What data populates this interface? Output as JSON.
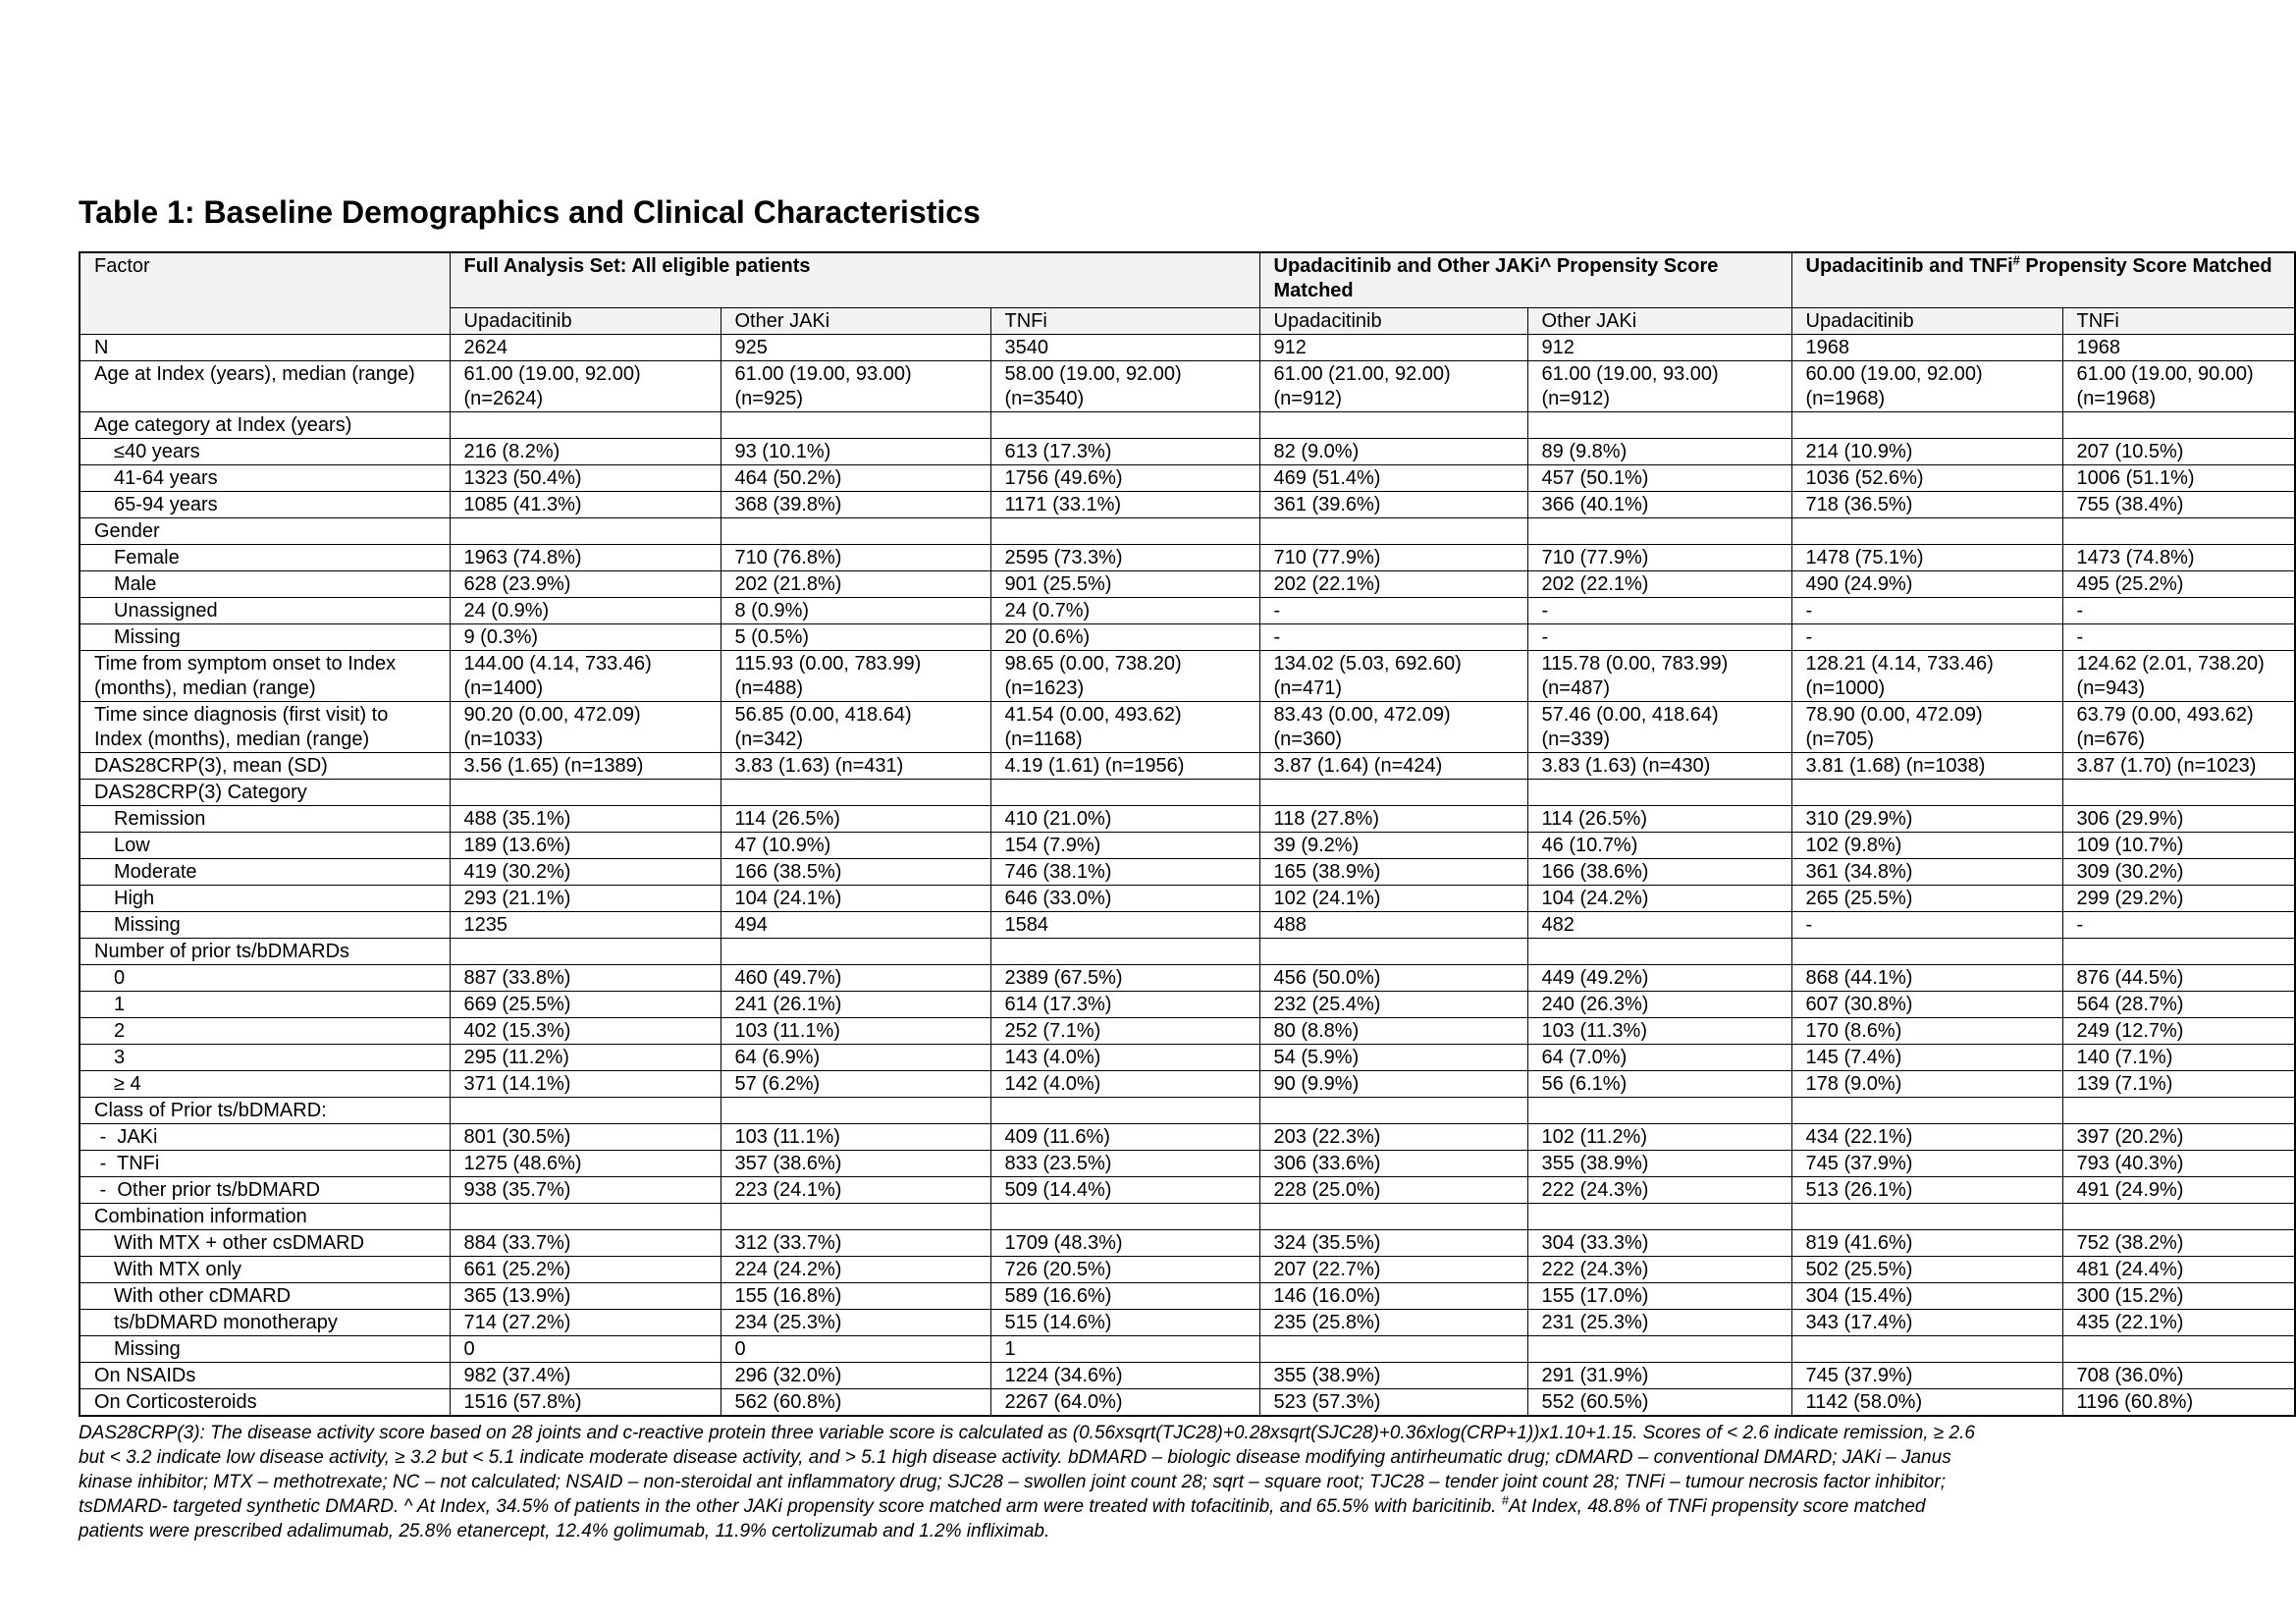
{
  "title": "Table 1: Baseline Demographics and Clinical Characteristics",
  "header": {
    "factor": "Factor",
    "group1": "Full Analysis Set: All eligible patients",
    "group2": "Upadacitinib and Other JAKi^ Propensity Score Matched",
    "group3_pre": "Upadacitinib and TNFi",
    "group3_sup": "#",
    "group3_post": " Propensity Score Matched",
    "columns": [
      "Upadacitinib",
      "Other JAKi",
      "TNFi",
      "Upadacitinib",
      "Other JAKi",
      "Upadacitinib",
      "TNFi"
    ]
  },
  "rows": [
    {
      "label": "N",
      "style": "top",
      "values": [
        "2624",
        "925",
        "3540",
        "912",
        "912",
        "1968",
        "1968"
      ]
    },
    {
      "label": "Age at Index (years), median (range)",
      "style": "top",
      "values": [
        "61.00 (19.00, 92.00) (n=2624)",
        "61.00 (19.00, 93.00) (n=925)",
        "58.00 (19.00, 92.00) (n=3540)",
        "61.00 (21.00, 92.00) (n=912)",
        "61.00 (19.00, 93.00) (n=912)",
        "60.00 (19.00, 92.00) (n=1968)",
        "61.00 (19.00, 90.00) (n=1968)"
      ]
    },
    {
      "label": "Age category at Index (years)",
      "style": "top",
      "values": [
        "",
        "",
        "",
        "",
        "",
        "",
        ""
      ]
    },
    {
      "label": "≤40 years",
      "style": "sub",
      "values": [
        "216 (8.2%)",
        "93 (10.1%)",
        "613 (17.3%)",
        "82 (9.0%)",
        "89 (9.8%)",
        "214 (10.9%)",
        "207 (10.5%)"
      ]
    },
    {
      "label": "41-64 years",
      "style": "sub",
      "values": [
        "1323 (50.4%)",
        "464 (50.2%)",
        "1756 (49.6%)",
        "469 (51.4%)",
        "457 (50.1%)",
        "1036 (52.6%)",
        "1006 (51.1%)"
      ]
    },
    {
      "label": "65-94 years",
      "style": "sub",
      "values": [
        "1085 (41.3%)",
        "368 (39.8%)",
        "1171 (33.1%)",
        "361 (39.6%)",
        "366 (40.1%)",
        "718 (36.5%)",
        "755 (38.4%)"
      ]
    },
    {
      "label": "Gender",
      "style": "top",
      "values": [
        "",
        "",
        "",
        "",
        "",
        "",
        ""
      ]
    },
    {
      "label": "Female",
      "style": "sub",
      "values": [
        "1963 (74.8%)",
        "710 (76.8%)",
        "2595 (73.3%)",
        "710 (77.9%)",
        "710 (77.9%)",
        "1478 (75.1%)",
        "1473 (74.8%)"
      ]
    },
    {
      "label": "Male",
      "style": "sub",
      "values": [
        "628 (23.9%)",
        "202 (21.8%)",
        "901 (25.5%)",
        "202 (22.1%)",
        "202 (22.1%)",
        "490 (24.9%)",
        "495 (25.2%)"
      ]
    },
    {
      "label": "Unassigned",
      "style": "sub",
      "values": [
        "24 (0.9%)",
        "8 (0.9%)",
        "24 (0.7%)",
        "-",
        "-",
        "-",
        "-"
      ]
    },
    {
      "label": "Missing",
      "style": "sub",
      "values": [
        "9 (0.3%)",
        "5 (0.5%)",
        "20 (0.6%)",
        "-",
        "-",
        "-",
        "-"
      ]
    },
    {
      "label": "Time from symptom onset to Index (months), median (range)",
      "style": "top",
      "values": [
        "144.00 (4.14, 733.46) (n=1400)",
        "115.93 (0.00, 783.99) (n=488)",
        "98.65 (0.00, 738.20) (n=1623)",
        "134.02 (5.03, 692.60) (n=471)",
        "115.78 (0.00, 783.99) (n=487)",
        "128.21 (4.14, 733.46) (n=1000)",
        "124.62 (2.01, 738.20) (n=943)"
      ]
    },
    {
      "label": "Time since diagnosis (first visit) to Index (months), median (range)",
      "style": "top",
      "values": [
        "90.20 (0.00, 472.09) (n=1033)",
        "56.85 (0.00, 418.64) (n=342)",
        "41.54 (0.00, 493.62) (n=1168)",
        "83.43 (0.00, 472.09) (n=360)",
        "57.46 (0.00, 418.64) (n=339)",
        "78.90 (0.00, 472.09) (n=705)",
        "63.79 (0.00, 493.62) (n=676)"
      ]
    },
    {
      "label": "DAS28CRP(3), mean (SD)",
      "style": "top",
      "values": [
        "3.56 (1.65) (n=1389)",
        "3.83 (1.63) (n=431)",
        "4.19 (1.61) (n=1956)",
        "3.87 (1.64) (n=424)",
        "3.83 (1.63) (n=430)",
        "3.81 (1.68) (n=1038)",
        "3.87 (1.70) (n=1023)"
      ]
    },
    {
      "label": "DAS28CRP(3) Category",
      "style": "top",
      "values": [
        "",
        "",
        "",
        "",
        "",
        "",
        ""
      ]
    },
    {
      "label": "Remission",
      "style": "sub",
      "values": [
        "488 (35.1%)",
        "114 (26.5%)",
        "410 (21.0%)",
        "118 (27.8%)",
        "114 (26.5%)",
        "310 (29.9%)",
        "306 (29.9%)"
      ]
    },
    {
      "label": "Low",
      "style": "sub",
      "values": [
        "189 (13.6%)",
        "47 (10.9%)",
        "154 (7.9%)",
        "39 (9.2%)",
        "46 (10.7%)",
        "102 (9.8%)",
        "109 (10.7%)"
      ]
    },
    {
      "label": "Moderate",
      "style": "sub",
      "values": [
        "419 (30.2%)",
        "166 (38.5%)",
        "746 (38.1%)",
        "165 (38.9%)",
        "166 (38.6%)",
        "361 (34.8%)",
        "309 (30.2%)"
      ]
    },
    {
      "label": "High",
      "style": "sub",
      "values": [
        "293 (21.1%)",
        "104 (24.1%)",
        "646 (33.0%)",
        "102 (24.1%)",
        "104 (24.2%)",
        "265 (25.5%)",
        "299 (29.2%)"
      ]
    },
    {
      "label": "Missing",
      "style": "sub",
      "values": [
        "1235",
        "494",
        "1584",
        "488",
        "482",
        "-",
        "-"
      ]
    },
    {
      "label": "Number of prior ts/bDMARDs",
      "style": "top",
      "values": [
        "",
        "",
        "",
        "",
        "",
        "",
        ""
      ]
    },
    {
      "label": "0",
      "style": "sub",
      "values": [
        "887 (33.8%)",
        "460 (49.7%)",
        "2389 (67.5%)",
        "456 (50.0%)",
        "449 (49.2%)",
        "868 (44.1%)",
        "876 (44.5%)"
      ]
    },
    {
      "label": "1",
      "style": "sub",
      "values": [
        "669 (25.5%)",
        "241 (26.1%)",
        "614 (17.3%)",
        "232 (25.4%)",
        "240 (26.3%)",
        "607 (30.8%)",
        "564 (28.7%)"
      ]
    },
    {
      "label": "2",
      "style": "sub",
      "values": [
        "402 (15.3%)",
        "103 (11.1%)",
        "252 (7.1%)",
        "80 (8.8%)",
        "103 (11.3%)",
        "170 (8.6%)",
        "249 (12.7%)"
      ]
    },
    {
      "label": "3",
      "style": "sub",
      "values": [
        "295 (11.2%)",
        "64 (6.9%)",
        "143 (4.0%)",
        "54 (5.9%)",
        "64 (7.0%)",
        "145 (7.4%)",
        "140 (7.1%)"
      ]
    },
    {
      "label": "≥ 4",
      "style": "sub",
      "values": [
        "371 (14.1%)",
        "57 (6.2%)",
        "142 (4.0%)",
        "90 (9.9%)",
        "56 (6.1%)",
        "178 (9.0%)",
        "139 (7.1%)"
      ]
    },
    {
      "label": "Class of Prior ts/bDMARD:",
      "style": "top",
      "values": [
        "",
        "",
        "",
        "",
        "",
        "",
        ""
      ]
    },
    {
      "label": " -  JAKi",
      "style": "dash",
      "values": [
        "801 (30.5%)",
        "103 (11.1%)",
        "409 (11.6%)",
        "203 (22.3%)",
        "102 (11.2%)",
        "434 (22.1%)",
        "397 (20.2%)"
      ]
    },
    {
      "label": " -  TNFi",
      "style": "dash",
      "values": [
        "1275 (48.6%)",
        "357 (38.6%)",
        "833 (23.5%)",
        "306 (33.6%)",
        "355 (38.9%)",
        "745 (37.9%)",
        "793 (40.3%)"
      ]
    },
    {
      "label": " -  Other prior ts/bDMARD",
      "style": "dash",
      "values": [
        "938 (35.7%)",
        "223 (24.1%)",
        "509 (14.4%)",
        "228 (25.0%)",
        "222 (24.3%)",
        "513 (26.1%)",
        "491 (24.9%)"
      ]
    },
    {
      "label": "Combination information",
      "style": "top",
      "values": [
        "",
        "",
        "",
        "",
        "",
        "",
        ""
      ]
    },
    {
      "label": "With MTX + other csDMARD",
      "style": "sub",
      "values": [
        "884 (33.7%)",
        "312 (33.7%)",
        "1709 (48.3%)",
        "324 (35.5%)",
        "304 (33.3%)",
        "819 (41.6%)",
        "752 (38.2%)"
      ]
    },
    {
      "label": "With MTX only",
      "style": "sub",
      "values": [
        "661 (25.2%)",
        "224 (24.2%)",
        "726 (20.5%)",
        "207 (22.7%)",
        "222 (24.3%)",
        "502 (25.5%)",
        "481 (24.4%)"
      ]
    },
    {
      "label": "With other cDMARD",
      "style": "sub",
      "values": [
        "365 (13.9%)",
        "155 (16.8%)",
        "589 (16.6%)",
        "146 (16.0%)",
        "155 (17.0%)",
        "304 (15.4%)",
        "300 (15.2%)"
      ]
    },
    {
      "label": "ts/bDMARD monotherapy",
      "style": "sub",
      "values": [
        "714 (27.2%)",
        "234 (25.3%)",
        "515 (14.6%)",
        "235 (25.8%)",
        "231 (25.3%)",
        "343 (17.4%)",
        "435 (22.1%)"
      ]
    },
    {
      "label": "Missing",
      "style": "sub",
      "values": [
        "0",
        "0",
        "1",
        "",
        "",
        "",
        ""
      ]
    },
    {
      "label": "On NSAIDs",
      "style": "top",
      "values": [
        "982 (37.4%)",
        "296 (32.0%)",
        "1224 (34.6%)",
        "355 (38.9%)",
        "291 (31.9%)",
        "745 (37.9%)",
        "708 (36.0%)"
      ]
    },
    {
      "label": "On Corticosteroids",
      "style": "top",
      "values": [
        "1516 (57.8%)",
        "562 (60.8%)",
        "2267 (64.0%)",
        "523 (57.3%)",
        "552 (60.5%)",
        "1142 (58.0%)",
        "1196 (60.8%)"
      ]
    }
  ],
  "footnote": {
    "lines": [
      "DAS28CRP(3): The disease activity score based on 28 joints and c-reactive protein three variable score is calculated as (0.56xsqrt(TJC28)+0.28xsqrt(SJC28)+0.36xlog(CRP+1))x1.10+1.15. Scores of < 2.6 indicate remission, ≥ 2.6",
      "but < 3.2 indicate low disease activity, ≥ 3.2 but < 5.1 indicate moderate disease activity, and > 5.1 high disease activity. bDMARD – biologic disease modifying antirheumatic drug; cDMARD – conventional DMARD; JAKi – Janus",
      "kinase inhibitor; MTX – methotrexate; NC – not calculated; NSAID – non-steroidal ant inflammatory drug; SJC28 – swollen joint count 28; sqrt – square root; TJC28 – tender joint count 28; TNFi – tumour necrosis factor inhibitor;",
      "tsDMARD- targeted synthetic DMARD. ^ At Index, 34.5% of patients in the other JAKi propensity score matched arm were treated with tofacitinib, and 65.5% with baricitinib.  ",
      "patients were prescribed adalimumab, 25.8% etanercept, 12.4% golimumab, 11.9% certolizumab and 1.2% infliximab."
    ],
    "line4_sup": "#",
    "line4_tail": "At Index, 48.8% of TNFi propensity score matched"
  }
}
